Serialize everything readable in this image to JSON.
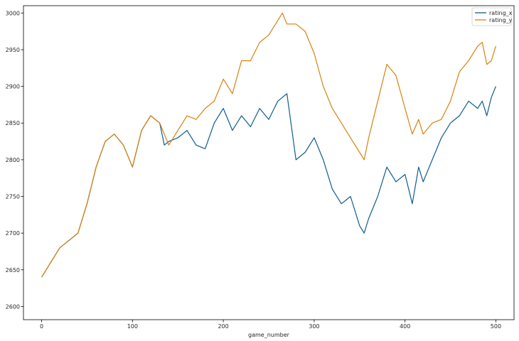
{
  "chart_data": {
    "type": "line",
    "title": "",
    "xlabel": "game_number",
    "ylabel": "",
    "xlim": [
      -20,
      520
    ],
    "ylim": [
      2582,
      3010
    ],
    "xticks": [
      0,
      100,
      200,
      300,
      400,
      500
    ],
    "yticks": [
      2600,
      2650,
      2700,
      2750,
      2800,
      2850,
      2900,
      2950,
      3000
    ],
    "grid": false,
    "legend_position": "top-right",
    "colors": {
      "rating_x": "#0d5c8e",
      "rating_y": "#d7820d",
      "frame": "#000000"
    },
    "series": [
      {
        "name": "rating_x",
        "x": [
          0,
          10,
          20,
          30,
          40,
          50,
          60,
          70,
          80,
          90,
          100,
          110,
          120,
          130,
          135,
          140,
          150,
          160,
          170,
          180,
          190,
          200,
          210,
          220,
          230,
          240,
          250,
          260,
          270,
          280,
          290,
          300,
          310,
          320,
          330,
          340,
          350,
          355,
          360,
          370,
          380,
          390,
          400,
          408,
          415,
          420,
          430,
          440,
          450,
          460,
          470,
          480,
          485,
          490,
          495,
          500
        ],
        "y": [
          2640,
          2660,
          2680,
          2690,
          2700,
          2740,
          2790,
          2825,
          2835,
          2820,
          2790,
          2840,
          2860,
          2850,
          2820,
          2825,
          2830,
          2840,
          2820,
          2815,
          2850,
          2870,
          2840,
          2860,
          2845,
          2870,
          2855,
          2880,
          2890,
          2800,
          2810,
          2830,
          2800,
          2760,
          2740,
          2750,
          2710,
          2700,
          2720,
          2750,
          2790,
          2770,
          2780,
          2740,
          2790,
          2770,
          2800,
          2830,
          2850,
          2860,
          2880,
          2870,
          2880,
          2860,
          2885,
          2900
        ]
      },
      {
        "name": "rating_y",
        "x": [
          0,
          10,
          20,
          30,
          40,
          50,
          60,
          70,
          80,
          90,
          100,
          110,
          120,
          130,
          140,
          150,
          160,
          170,
          180,
          190,
          200,
          210,
          220,
          230,
          240,
          250,
          260,
          265,
          270,
          280,
          290,
          300,
          310,
          320,
          330,
          340,
          350,
          355,
          360,
          370,
          380,
          390,
          400,
          408,
          415,
          420,
          430,
          440,
          450,
          460,
          470,
          480,
          485,
          490,
          495,
          500
        ],
        "y": [
          2640,
          2660,
          2680,
          2690,
          2700,
          2740,
          2790,
          2825,
          2835,
          2820,
          2790,
          2840,
          2860,
          2850,
          2820,
          2840,
          2860,
          2855,
          2870,
          2880,
          2910,
          2890,
          2935,
          2935,
          2960,
          2970,
          2990,
          3000,
          2985,
          2985,
          2975,
          2945,
          2900,
          2870,
          2850,
          2830,
          2810,
          2800,
          2830,
          2880,
          2930,
          2915,
          2870,
          2835,
          2855,
          2835,
          2850,
          2855,
          2880,
          2920,
          2935,
          2955,
          2960,
          2930,
          2935,
          2955
        ]
      }
    ]
  }
}
